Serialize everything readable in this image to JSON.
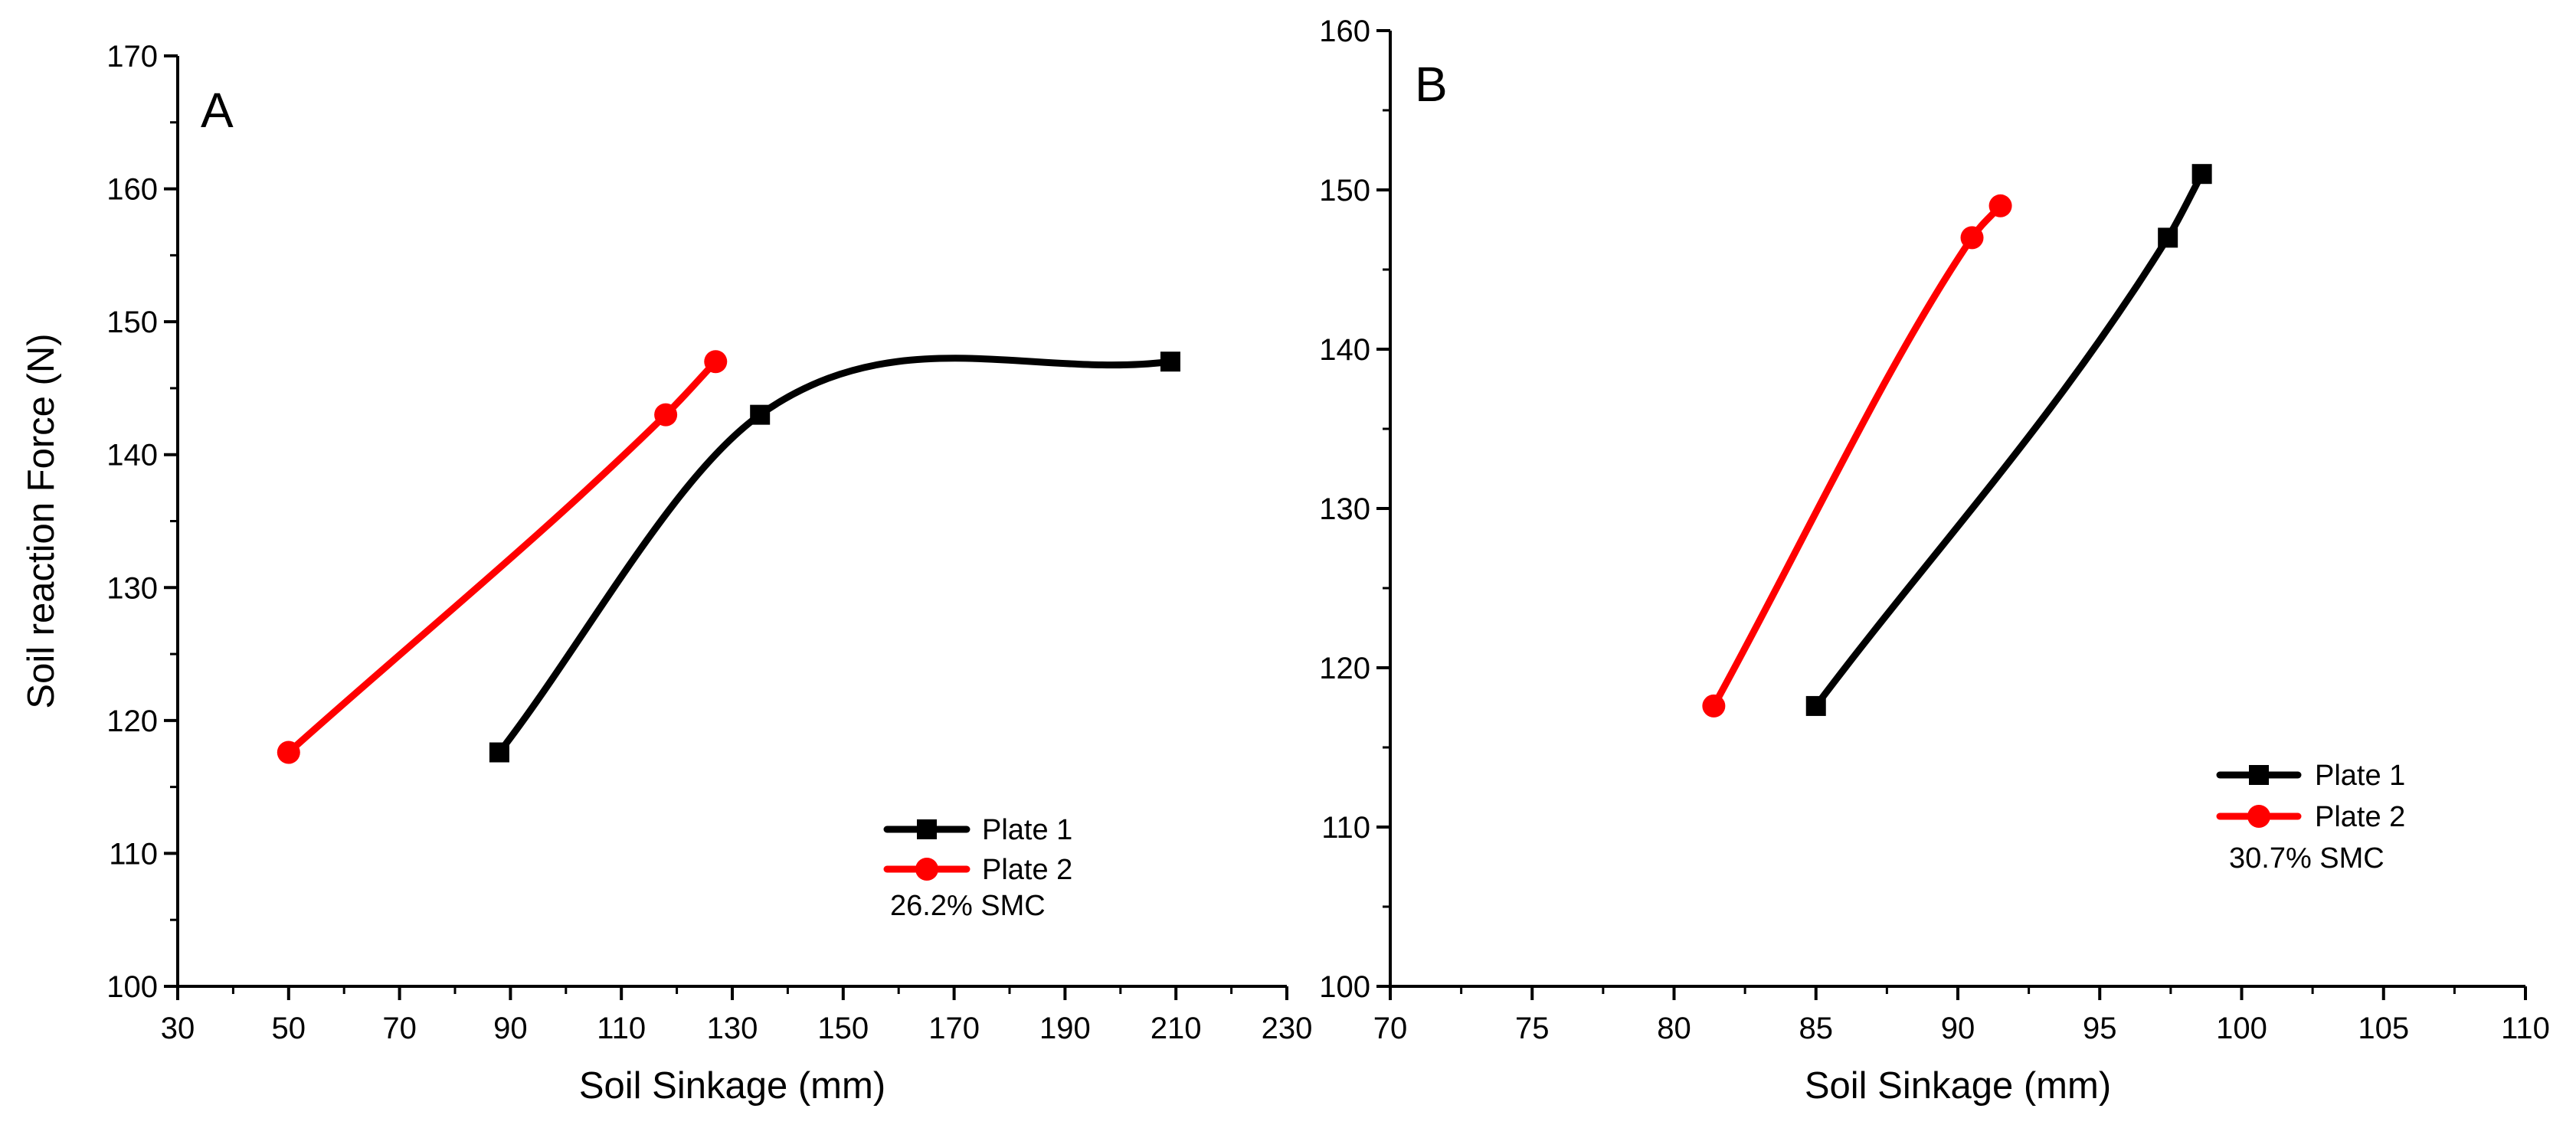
{
  "figure": {
    "background": "#ffffff"
  },
  "chart_data": [
    {
      "type": "line",
      "panel_label": "A",
      "xlabel": "Soil Sinkage (mm)",
      "ylabel": "Soil reaction Force (N)",
      "xlim": [
        30,
        230
      ],
      "ylim": [
        100,
        170
      ],
      "xticks": [
        "30",
        "50",
        "70",
        "90",
        "110",
        "130",
        "150",
        "170",
        "190",
        "210",
        "230"
      ],
      "yticks": [
        "100",
        "110",
        "120",
        "130",
        "140",
        "150",
        "160",
        "170"
      ],
      "grid": false,
      "legend_position": "bottom-right",
      "annotation": "26.2%  SMC",
      "series": [
        {
          "name": "Plate 1",
          "color": "#000000",
          "marker": "square",
          "x": [
            88,
            135,
            209
          ],
          "y": [
            117.6,
            143,
            147
          ]
        },
        {
          "name": "Plate 2",
          "color": "#ff0000",
          "marker": "circle",
          "x": [
            50,
            118,
            127
          ],
          "y": [
            117.6,
            143,
            147
          ]
        }
      ]
    },
    {
      "type": "line",
      "panel_label": "B",
      "xlabel": "Soil Sinkage (mm)",
      "ylabel": "",
      "xlim": [
        70,
        110
      ],
      "ylim": [
        100,
        160
      ],
      "xticks": [
        "70",
        "75",
        "80",
        "85",
        "90",
        "95",
        "100",
        "105",
        "110"
      ],
      "yticks": [
        "100",
        "110",
        "120",
        "130",
        "140",
        "150",
        "160"
      ],
      "grid": false,
      "legend_position": "lower-right",
      "annotation": "30.7%  SMC",
      "series": [
        {
          "name": "Plate 1",
          "color": "#000000",
          "marker": "square",
          "x": [
            85,
            97.4,
            98.6
          ],
          "y": [
            117.6,
            147,
            151
          ]
        },
        {
          "name": "Plate 2",
          "color": "#ff0000",
          "marker": "circle",
          "x": [
            81.4,
            90.5,
            91.5
          ],
          "y": [
            117.6,
            147,
            149
          ]
        }
      ]
    }
  ]
}
